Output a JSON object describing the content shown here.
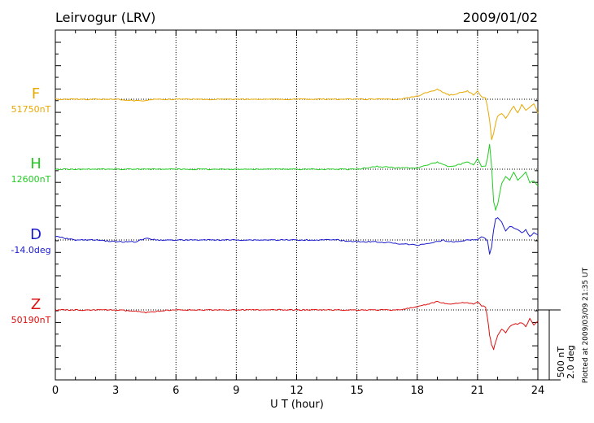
{
  "header": {
    "station": "Leirvogur (LRV)",
    "date": "2009/01/02"
  },
  "footer_note": "Plotted at 2009/03/09 21:35 UT",
  "scale_bar": {
    "line1": "500 nT",
    "line2": "2.0 deg"
  },
  "chart_data": {
    "type": "line",
    "title": "Leirvogur (LRV)",
    "xlabel": "U T (hour)",
    "ylabel": "",
    "xlim": [
      0,
      24
    ],
    "x_ticks": [
      "0",
      "3",
      "6",
      "9",
      "12",
      "15",
      "18",
      "21",
      "24"
    ],
    "grid": "vertical dotted every 3 hours",
    "series": [
      {
        "name": "F",
        "baseline_label": "51750nT",
        "color": "#e8a800",
        "x": [
          0,
          0.5,
          1,
          2,
          3,
          4,
          4.5,
          5,
          6,
          7,
          8,
          9,
          10,
          11,
          12,
          13,
          14,
          15,
          16,
          17,
          18,
          18.5,
          19,
          19.3,
          19.6,
          20,
          20.5,
          20.8,
          21,
          21.2,
          21.4,
          21.5,
          21.6,
          21.7,
          21.8,
          21.9,
          22.0,
          22.2,
          22.4,
          22.6,
          22.8,
          23.0,
          23.2,
          23.4,
          23.6,
          23.8,
          24.0
        ],
        "values": [
          0,
          0,
          0,
          0,
          0,
          -10,
          -10,
          0,
          0,
          0,
          0,
          0,
          0,
          0,
          0,
          0,
          0,
          0,
          0,
          0,
          20,
          50,
          70,
          50,
          30,
          40,
          60,
          30,
          60,
          20,
          10,
          -60,
          -150,
          -290,
          -240,
          -170,
          -120,
          -100,
          -140,
          -90,
          -50,
          -100,
          -40,
          -80,
          -60,
          -30,
          -100
        ]
      },
      {
        "name": "H",
        "baseline_label": "12600nT",
        "color": "#22cc22",
        "x": [
          0,
          0.5,
          1,
          2,
          3,
          4,
          4.5,
          5,
          6,
          7,
          8,
          9,
          10,
          11,
          12,
          13,
          14,
          15,
          16,
          17,
          18,
          18.5,
          19,
          19.3,
          19.6,
          20,
          20.5,
          20.8,
          21,
          21.2,
          21.4,
          21.5,
          21.6,
          21.7,
          21.8,
          21.9,
          22.0,
          22.2,
          22.4,
          22.6,
          22.8,
          23.0,
          23.2,
          23.4,
          23.6,
          23.8,
          24.0
        ],
        "values": [
          0,
          0,
          0,
          0,
          0,
          0,
          0,
          0,
          0,
          0,
          0,
          0,
          0,
          0,
          0,
          0,
          0,
          0,
          20,
          10,
          10,
          30,
          50,
          30,
          20,
          30,
          50,
          30,
          80,
          20,
          20,
          80,
          180,
          20,
          -230,
          -290,
          -250,
          -100,
          -50,
          -80,
          -20,
          -80,
          -50,
          -20,
          -100,
          -80,
          -120
        ]
      },
      {
        "name": "D",
        "baseline_label": "-14.0deg",
        "color": "#1a1acc",
        "x": [
          0,
          0.5,
          1,
          2,
          3,
          4,
          4.5,
          5,
          6,
          7,
          8,
          9,
          10,
          11,
          12,
          13,
          14,
          15,
          16,
          17,
          18,
          18.5,
          19,
          19.3,
          19.6,
          20,
          20.5,
          20.8,
          21,
          21.2,
          21.4,
          21.5,
          21.6,
          21.7,
          21.8,
          21.9,
          22.0,
          22.2,
          22.4,
          22.6,
          22.8,
          23.0,
          23.2,
          23.4,
          23.6,
          23.8,
          24.0
        ],
        "values": [
          0.1,
          0.05,
          0,
          0,
          -0.05,
          -0.05,
          0.05,
          0,
          0,
          0,
          0,
          0,
          0,
          0,
          0,
          0,
          0,
          -0.05,
          -0.05,
          -0.1,
          -0.15,
          -0.1,
          -0.05,
          0,
          -0.05,
          -0.05,
          0,
          0,
          0,
          0.1,
          0.05,
          -0.05,
          -0.4,
          -0.2,
          0.3,
          0.6,
          0.65,
          0.5,
          0.25,
          0.4,
          0.35,
          0.3,
          0.2,
          0.3,
          0.1,
          0.2,
          0.15
        ]
      },
      {
        "name": "Z",
        "baseline_label": "50190nT",
        "color": "#dd1111",
        "x": [
          0,
          0.5,
          1,
          2,
          3,
          4,
          4.5,
          5,
          6,
          7,
          8,
          9,
          10,
          11,
          12,
          13,
          14,
          15,
          16,
          17,
          18,
          18.5,
          19,
          19.3,
          19.6,
          20,
          20.5,
          20.8,
          21,
          21.2,
          21.4,
          21.5,
          21.6,
          21.7,
          21.8,
          21.9,
          22.0,
          22.2,
          22.4,
          22.6,
          22.8,
          23.0,
          23.2,
          23.4,
          23.6,
          23.8,
          24.0
        ],
        "values": [
          0,
          0,
          0,
          0,
          0,
          -10,
          -20,
          -10,
          0,
          0,
          0,
          0,
          0,
          0,
          0,
          0,
          0,
          0,
          0,
          0,
          20,
          40,
          60,
          50,
          40,
          50,
          50,
          40,
          60,
          30,
          20,
          -60,
          -180,
          -250,
          -280,
          -230,
          -180,
          -140,
          -160,
          -120,
          -100,
          -100,
          -90,
          -120,
          -60,
          -110,
          -80
        ]
      }
    ]
  }
}
